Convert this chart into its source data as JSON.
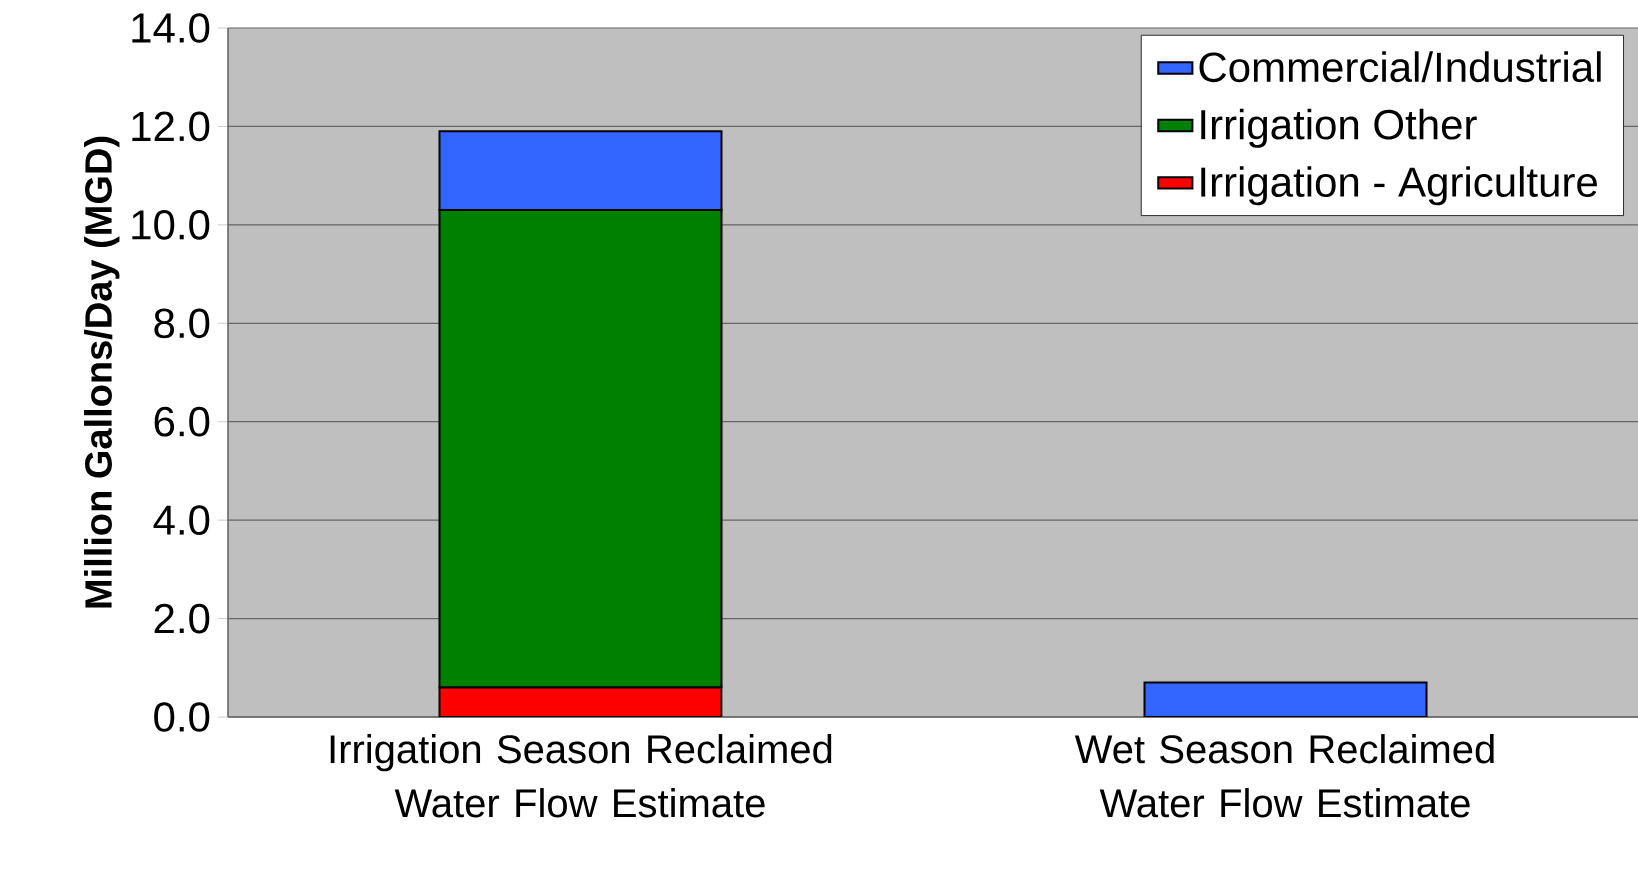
{
  "chart_data": {
    "type": "bar",
    "stacked": true,
    "ylabel": "Million Gallons/Day (MGD)",
    "categories": [
      "Irrigation Season Reclaimed Water Flow Estimate",
      "Wet Season Reclaimed Water Flow Estimate"
    ],
    "series": [
      {
        "name": "Irrigation - Agriculture",
        "color": "#ff0000",
        "values": [
          0.6,
          0
        ]
      },
      {
        "name": "Irrigation Other",
        "color": "#008000",
        "values": [
          9.7,
          0
        ]
      },
      {
        "name": "Commercial/Industrial",
        "color": "#3366ff",
        "values": [
          1.6,
          0.7
        ]
      }
    ],
    "ylim": [
      0,
      14
    ],
    "yticks": [
      {
        "value": 0,
        "label": "0.0"
      },
      {
        "value": 2,
        "label": "2.0"
      },
      {
        "value": 4,
        "label": "4.0"
      },
      {
        "value": 6,
        "label": "6.0"
      },
      {
        "value": 8,
        "label": "8.0"
      },
      {
        "value": 10,
        "label": "10.0"
      },
      {
        "value": 12,
        "label": "12.0"
      },
      {
        "value": 14,
        "label": "14.0"
      }
    ],
    "grid": "y",
    "legend": "top right"
  }
}
